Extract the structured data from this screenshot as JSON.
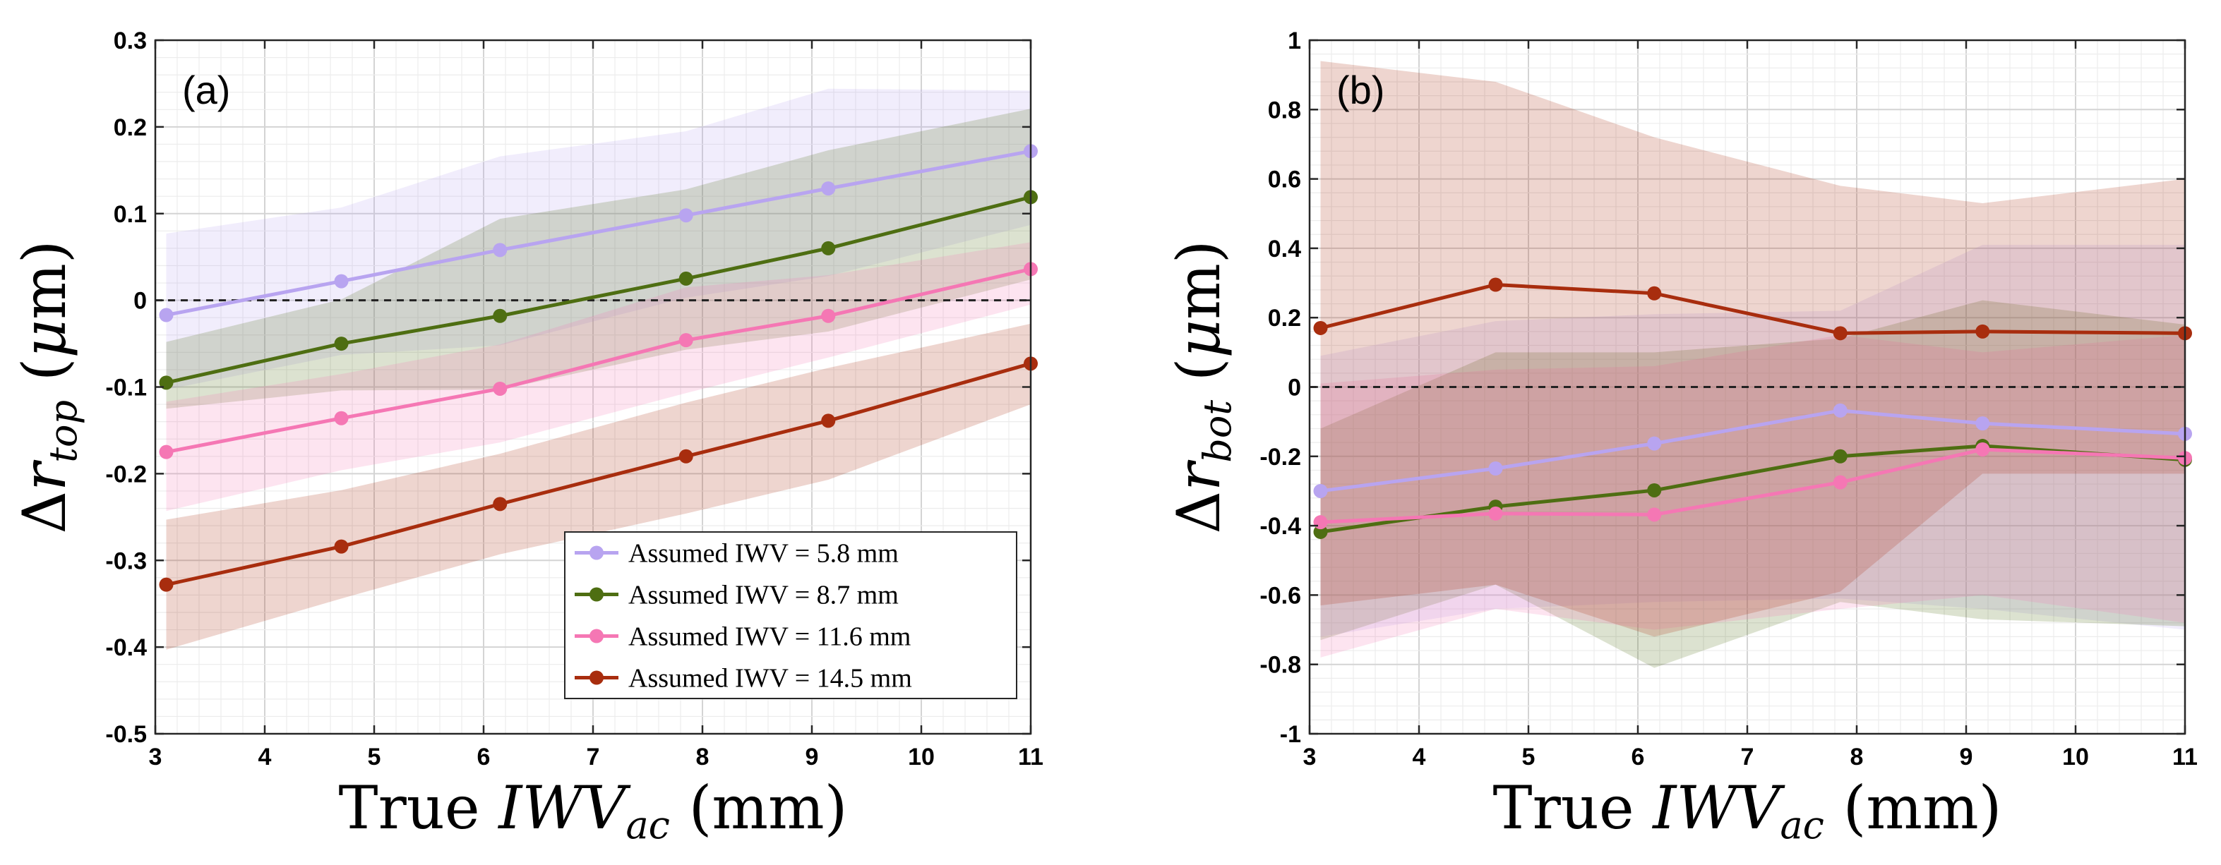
{
  "chart_data": [
    {
      "type": "line",
      "panel_label": "(a)",
      "xlabel": {
        "main": "True ",
        "var": "IWV",
        "sub": "ac",
        "unit": " (mm)"
      },
      "ylabel": {
        "delta": "Δ",
        "var": "r",
        "sub": "top",
        "unit_open": " (",
        "mu": "μ",
        "unit_close": "m)"
      },
      "xlim": [
        3,
        11
      ],
      "ylim": [
        -0.5,
        0.3
      ],
      "xticks": [
        "3",
        "4",
        "5",
        "6",
        "7",
        "8",
        "9",
        "10",
        "11"
      ],
      "yticks": [
        "-0.5",
        "-0.4",
        "-0.3",
        "-0.2",
        "-0.1",
        "0",
        "0.1",
        "0.2",
        "0.3"
      ],
      "grid": true,
      "reference_line": 0,
      "legend_position": "bottom-right",
      "x": [
        3.1,
        4.7,
        6.15,
        7.85,
        9.15,
        11
      ],
      "series": [
        {
          "name": "Assumed IWV = 5.8 mm",
          "color": "#b8a4f0",
          "values": [
            -0.017,
            0.022,
            0.058,
            0.098,
            0.129,
            0.172
          ],
          "band_upper": [
            0.077,
            0.107,
            0.166,
            0.195,
            0.244,
            0.242
          ],
          "band_lower": [
            -0.103,
            -0.063,
            -0.052,
            0.003,
            0.028,
            0.087
          ]
        },
        {
          "name": "Assumed IWV = 8.7 mm",
          "color": "#4e6e12",
          "values": [
            -0.095,
            -0.05,
            -0.018,
            0.025,
            0.06,
            0.119
          ],
          "band_upper": [
            -0.048,
            0.001,
            0.094,
            0.128,
            0.173,
            0.221
          ],
          "band_lower": [
            -0.125,
            -0.104,
            -0.103,
            -0.057,
            -0.036,
            0.024
          ]
        },
        {
          "name": "Assumed IWV = 11.6 mm",
          "color": "#f577b4",
          "values": [
            -0.175,
            -0.136,
            -0.102,
            -0.046,
            -0.018,
            0.036
          ],
          "band_upper": [
            -0.117,
            -0.085,
            -0.051,
            0.015,
            0.029,
            0.067
          ],
          "band_lower": [
            -0.243,
            -0.196,
            -0.164,
            -0.107,
            -0.066,
            -0.005
          ]
        },
        {
          "name": "Assumed IWV = 14.5 mm",
          "color": "#a82d0e",
          "values": [
            -0.328,
            -0.284,
            -0.235,
            -0.18,
            -0.139,
            -0.073
          ],
          "band_upper": [
            -0.253,
            -0.219,
            -0.177,
            -0.118,
            -0.078,
            -0.027
          ],
          "band_lower": [
            -0.403,
            -0.344,
            -0.293,
            -0.246,
            -0.207,
            -0.12
          ]
        }
      ]
    },
    {
      "type": "line",
      "panel_label": "(b)",
      "xlabel": {
        "main": "True ",
        "var": "IWV",
        "sub": "ac",
        "unit": " (mm)"
      },
      "ylabel": {
        "delta": "Δ",
        "var": "r",
        "sub": "bot",
        "unit_open": " (",
        "mu": "μ",
        "unit_close": "m)"
      },
      "xlim": [
        3,
        11
      ],
      "ylim": [
        -1,
        1
      ],
      "xticks": [
        "3",
        "4",
        "5",
        "6",
        "7",
        "8",
        "9",
        "10",
        "11"
      ],
      "yticks": [
        "-1",
        "-0.8",
        "-0.6",
        "-0.4",
        "-0.2",
        "0",
        "0.2",
        "0.4",
        "0.6",
        "0.8",
        "1"
      ],
      "grid": true,
      "reference_line": 0,
      "x": [
        3.1,
        4.7,
        6.15,
        7.85,
        9.15,
        11
      ],
      "series": [
        {
          "name": "Assumed IWV = 5.8 mm",
          "color": "#b8a4f0",
          "values": [
            -0.3,
            -0.235,
            -0.163,
            -0.068,
            -0.105,
            -0.135
          ],
          "band_upper": [
            0.09,
            0.19,
            0.21,
            0.22,
            0.41,
            0.41
          ],
          "band_lower": [
            -0.72,
            -0.64,
            -0.62,
            -0.61,
            -0.64,
            -0.7
          ]
        },
        {
          "name": "Assumed IWV = 8.7 mm",
          "color": "#4e6e12",
          "values": [
            -0.418,
            -0.345,
            -0.298,
            -0.2,
            -0.17,
            -0.21
          ],
          "band_upper": [
            -0.12,
            0.1,
            0.1,
            0.14,
            0.25,
            0.18
          ],
          "band_lower": [
            -0.73,
            -0.57,
            -0.81,
            -0.62,
            -0.67,
            -0.69
          ]
        },
        {
          "name": "Assumed IWV = 11.6 mm",
          "color": "#f577b4",
          "values": [
            -0.39,
            -0.365,
            -0.368,
            -0.275,
            -0.18,
            -0.205
          ],
          "band_upper": [
            0.01,
            0.05,
            0.06,
            0.15,
            0.1,
            0.15
          ],
          "band_lower": [
            -0.78,
            -0.64,
            -0.7,
            -0.64,
            -0.6,
            -0.68
          ]
        },
        {
          "name": "Assumed IWV = 14.5 mm",
          "color": "#a82d0e",
          "values": [
            0.17,
            0.295,
            0.27,
            0.155,
            0.16,
            0.155
          ],
          "band_upper": [
            0.94,
            0.88,
            0.72,
            0.58,
            0.53,
            0.6
          ],
          "band_lower": [
            -0.63,
            -0.57,
            -0.72,
            -0.59,
            -0.25,
            -0.25
          ]
        }
      ]
    }
  ]
}
